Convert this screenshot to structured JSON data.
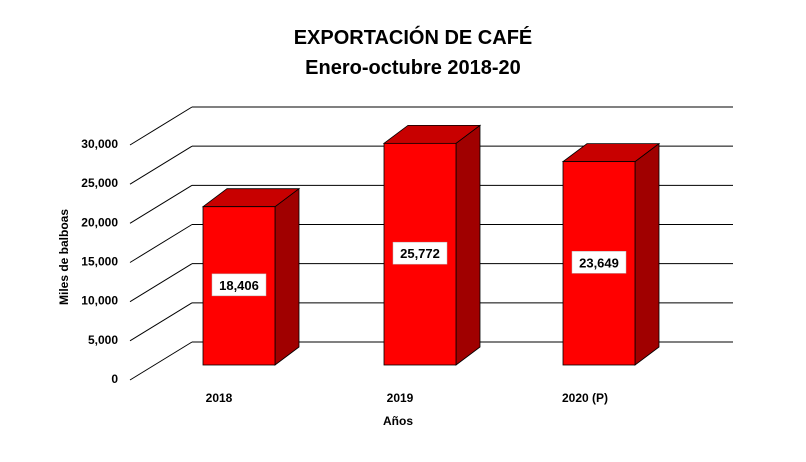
{
  "chart_data": {
    "type": "bar",
    "title": "EXPORTACIÓN DE CAFÉ",
    "subtitle": "Enero-octubre 2018-20",
    "categories": [
      "2018",
      "2019",
      "2020 (P)"
    ],
    "values": [
      18406,
      25772,
      23649
    ],
    "data_labels": [
      "18,406",
      "25,772",
      "23,649"
    ],
    "xlabel": "Años",
    "ylabel": "Miles de balboas",
    "ylim": [
      0,
      30000
    ],
    "yticks": [
      0,
      5000,
      10000,
      15000,
      20000,
      25000,
      30000
    ],
    "ytick_labels": [
      "0",
      "5,000",
      "10,000",
      "15,000",
      "20,000",
      "25,000",
      "30,000"
    ],
    "grid": true,
    "legend": "none",
    "style": "3d-column",
    "colors": {
      "bar_front": "#ff0000",
      "bar_top": "#c80000",
      "bar_side": "#a00000",
      "grid": "#000000"
    }
  }
}
